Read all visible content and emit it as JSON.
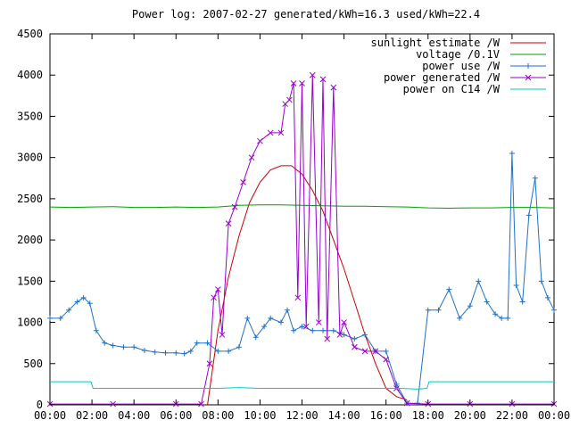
{
  "chart_data": {
    "type": "line",
    "title": "Power log: 2007-02-27 generated/kWh=16.3 used/kWh=22.4",
    "xlabel": "",
    "ylabel": "",
    "xlim": [
      0,
      24
    ],
    "ylim": [
      0,
      4500
    ],
    "grid": false,
    "legend_position": "top-right",
    "x_ticks": [
      "00:00",
      "02:00",
      "04:00",
      "06:00",
      "08:00",
      "10:00",
      "12:00",
      "14:00",
      "16:00",
      "18:00",
      "20:00",
      "22:00",
      "00:00"
    ],
    "y_ticks": [
      "0",
      "500",
      "1000",
      "1500",
      "2000",
      "2500",
      "3000",
      "3500",
      "4000",
      "4500"
    ],
    "series": [
      {
        "name": "sunlight estimate /W",
        "color": "#cc0000",
        "marker": "none",
        "points": [
          [
            7.5,
            0
          ],
          [
            8,
            900
          ],
          [
            8.5,
            1550
          ],
          [
            9,
            2050
          ],
          [
            9.5,
            2450
          ],
          [
            10,
            2700
          ],
          [
            10.5,
            2850
          ],
          [
            11,
            2900
          ],
          [
            11.5,
            2900
          ],
          [
            12,
            2800
          ],
          [
            12.5,
            2600
          ],
          [
            13,
            2350
          ],
          [
            13.5,
            2000
          ],
          [
            14,
            1650
          ],
          [
            14.5,
            1250
          ],
          [
            15,
            850
          ],
          [
            15.5,
            500
          ],
          [
            16,
            200
          ],
          [
            16.5,
            100
          ],
          [
            17,
            60
          ]
        ]
      },
      {
        "name": "voltage /0.1V",
        "color": "#00a000",
        "marker": "none",
        "points": [
          [
            0,
            2400
          ],
          [
            1,
            2395
          ],
          [
            2,
            2400
          ],
          [
            3,
            2405
          ],
          [
            4,
            2395
          ],
          [
            5,
            2395
          ],
          [
            6,
            2400
          ],
          [
            7,
            2395
          ],
          [
            8,
            2400
          ],
          [
            9,
            2420
          ],
          [
            10,
            2425
          ],
          [
            11,
            2425
          ],
          [
            12,
            2420
          ],
          [
            13,
            2415
          ],
          [
            14,
            2410
          ],
          [
            15,
            2410
          ],
          [
            16,
            2405
          ],
          [
            17,
            2400
          ],
          [
            18,
            2390
          ],
          [
            19,
            2385
          ],
          [
            20,
            2390
          ],
          [
            21,
            2390
          ],
          [
            22,
            2395
          ],
          [
            23,
            2395
          ],
          [
            24,
            2390
          ]
        ]
      },
      {
        "name": "power use /W",
        "color": "#1e72c8",
        "marker": "plus",
        "points": [
          [
            0,
            1050
          ],
          [
            0.5,
            1050
          ],
          [
            0.9,
            1150
          ],
          [
            1.3,
            1250
          ],
          [
            1.6,
            1300
          ],
          [
            1.9,
            1230
          ],
          [
            2.2,
            900
          ],
          [
            2.6,
            750
          ],
          [
            3,
            720
          ],
          [
            3.5,
            700
          ],
          [
            4,
            700
          ],
          [
            4.5,
            660
          ],
          [
            5,
            640
          ],
          [
            5.5,
            630
          ],
          [
            6,
            630
          ],
          [
            6.4,
            620
          ],
          [
            6.7,
            650
          ],
          [
            7,
            750
          ],
          [
            7.5,
            750
          ],
          [
            8,
            650
          ],
          [
            8.5,
            650
          ],
          [
            9,
            700
          ],
          [
            9.4,
            1050
          ],
          [
            9.8,
            820
          ],
          [
            10.2,
            950
          ],
          [
            10.5,
            1050
          ],
          [
            11,
            1000
          ],
          [
            11.3,
            1150
          ],
          [
            11.6,
            900
          ],
          [
            12,
            950
          ],
          [
            12.5,
            900
          ],
          [
            13,
            900
          ],
          [
            13.5,
            900
          ],
          [
            14,
            850
          ],
          [
            14.5,
            800
          ],
          [
            15,
            850
          ],
          [
            15.5,
            650
          ],
          [
            16,
            650
          ],
          [
            16.5,
            250
          ],
          [
            17,
            20
          ],
          [
            17.5,
            20
          ],
          [
            18,
            1150
          ],
          [
            18.5,
            1150
          ],
          [
            19,
            1400
          ],
          [
            19.5,
            1050
          ],
          [
            20,
            1200
          ],
          [
            20.4,
            1500
          ],
          [
            20.8,
            1250
          ],
          [
            21.2,
            1100
          ],
          [
            21.5,
            1050
          ],
          [
            21.8,
            1050
          ],
          [
            22,
            3050
          ],
          [
            22.2,
            1450
          ],
          [
            22.5,
            1250
          ],
          [
            22.8,
            2300
          ],
          [
            23.1,
            2750
          ],
          [
            23.4,
            1500
          ],
          [
            23.7,
            1300
          ],
          [
            24,
            1150
          ]
        ]
      },
      {
        "name": "power generated /W",
        "color": "#9900cc",
        "marker": "cross",
        "points": [
          [
            0,
            10
          ],
          [
            3,
            10
          ],
          [
            6,
            10
          ],
          [
            7.2,
            10
          ],
          [
            7.6,
            500
          ],
          [
            7.8,
            1300
          ],
          [
            8,
            1400
          ],
          [
            8.2,
            850
          ],
          [
            8.5,
            2200
          ],
          [
            8.8,
            2400
          ],
          [
            9.2,
            2700
          ],
          [
            9.6,
            3000
          ],
          [
            10,
            3200
          ],
          [
            10.5,
            3300
          ],
          [
            11,
            3300
          ],
          [
            11.2,
            3650
          ],
          [
            11.4,
            3700
          ],
          [
            11.6,
            3900
          ],
          [
            11.8,
            1300
          ],
          [
            12,
            3900
          ],
          [
            12.2,
            950
          ],
          [
            12.5,
            4000
          ],
          [
            12.8,
            1000
          ],
          [
            13,
            3950
          ],
          [
            13.2,
            800
          ],
          [
            13.5,
            3850
          ],
          [
            13.8,
            850
          ],
          [
            14,
            1000
          ],
          [
            14.5,
            700
          ],
          [
            15,
            650
          ],
          [
            15.5,
            650
          ],
          [
            16,
            550
          ],
          [
            16.5,
            200
          ],
          [
            17,
            20
          ],
          [
            18,
            10
          ],
          [
            20,
            10
          ],
          [
            22,
            10
          ],
          [
            24,
            10
          ]
        ]
      },
      {
        "name": "power on C14 /W",
        "color": "#00c8c8",
        "marker": "none",
        "points": [
          [
            0,
            280
          ],
          [
            1.95,
            280
          ],
          [
            2.05,
            200
          ],
          [
            4,
            200
          ],
          [
            6,
            200
          ],
          [
            8,
            200
          ],
          [
            9,
            210
          ],
          [
            10,
            200
          ],
          [
            12,
            200
          ],
          [
            14,
            200
          ],
          [
            16,
            200
          ],
          [
            16.7,
            200
          ],
          [
            17.5,
            190
          ],
          [
            17.95,
            200
          ],
          [
            18.05,
            280
          ],
          [
            20,
            280
          ],
          [
            22,
            280
          ],
          [
            24,
            280
          ]
        ]
      }
    ]
  }
}
